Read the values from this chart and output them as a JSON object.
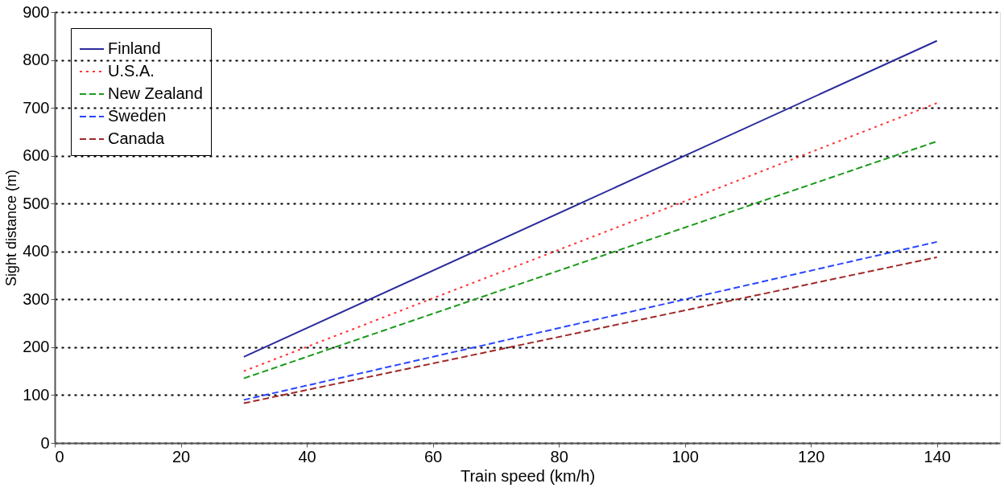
{
  "chart_data": {
    "type": "line",
    "xlabel": "Train speed (km/h)",
    "ylabel": "Sight distance (m)",
    "xlim": [
      0,
      150
    ],
    "xticks": [
      0,
      20,
      40,
      60,
      80,
      100,
      120,
      140
    ],
    "ylim": [
      0,
      900
    ],
    "yticks": [
      0,
      100,
      200,
      300,
      400,
      500,
      600,
      700,
      800,
      900
    ],
    "grid": "y",
    "legend": "top left",
    "marker": "none",
    "series": [
      {
        "name": "Finland",
        "color": "#2a2a9c",
        "line_style": "solid",
        "x": [
          30,
          100,
          140
        ],
        "values": [
          180,
          600,
          840
        ]
      },
      {
        "name": "U.S.A.",
        "color": "#ff3333",
        "line_style": "dotted",
        "x": [
          30,
          100,
          140
        ],
        "values": [
          150,
          505,
          710
        ]
      },
      {
        "name": "New Zealand",
        "color": "#1a9a1a",
        "line_style": "dashed",
        "x": [
          30,
          100,
          140
        ],
        "values": [
          135,
          450,
          630
        ]
      },
      {
        "name": "Sweden",
        "color": "#2a45ff",
        "line_style": "dashed",
        "x": [
          30,
          100,
          140
        ],
        "values": [
          90,
          300,
          420
        ]
      },
      {
        "name": "Canada",
        "color": "#a02828",
        "line_style": "dashed",
        "x": [
          30,
          100,
          140
        ],
        "values": [
          83,
          277,
          388
        ]
      }
    ]
  }
}
